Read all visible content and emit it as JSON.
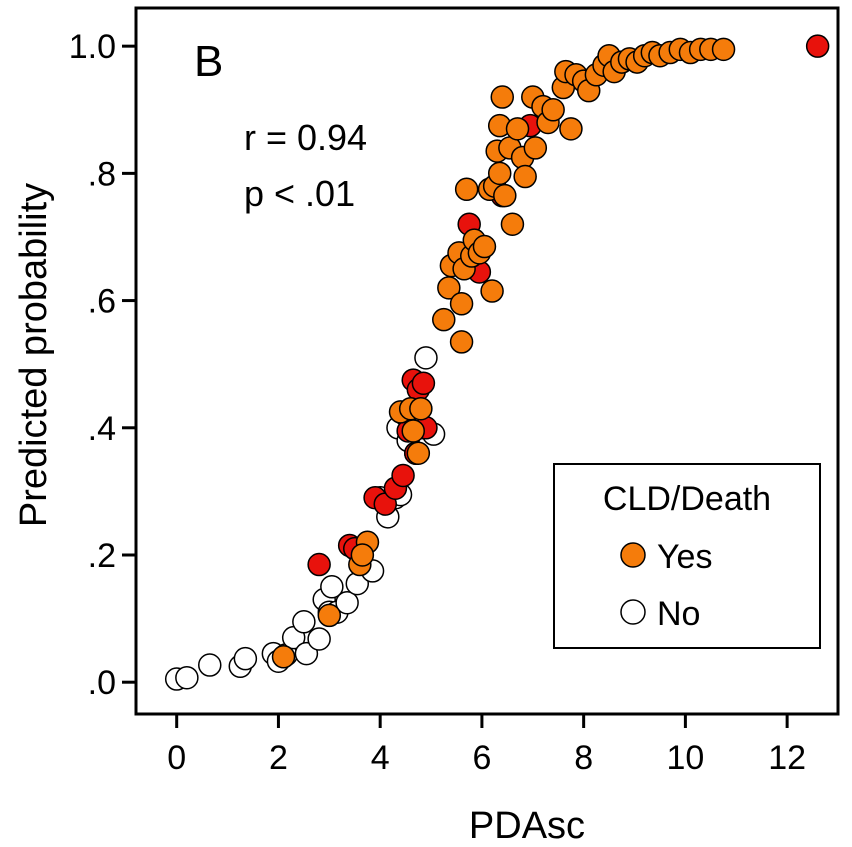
{
  "chart_data": {
    "type": "scatter",
    "panel_label": "B",
    "xlabel": "PDAsc",
    "ylabel": "Predicted probability",
    "xlim": [
      -0.8,
      13.0
    ],
    "ylim": [
      -0.05,
      1.06
    ],
    "x_ticks": [
      0,
      2,
      4,
      6,
      8,
      10,
      12
    ],
    "x_tick_labels": [
      "0",
      "2",
      "4",
      "6",
      "8",
      "10",
      "12"
    ],
    "y_ticks": [
      0,
      0.2,
      0.4,
      0.6,
      0.8,
      1.0
    ],
    "y_tick_labels": [
      ".0",
      ".2",
      ".4",
      ".6",
      ".8",
      "1.0"
    ],
    "grid": false,
    "annotations": {
      "r_text": "r = 0.94",
      "p_text": "p < .01"
    },
    "legend": {
      "title": "CLD/Death",
      "placement": "bottom-right",
      "entries": [
        {
          "label": "Yes",
          "color": "#f57c0b"
        },
        {
          "label": "No",
          "color": "#ffffff"
        }
      ]
    },
    "colors": {
      "yes": "#f57c0b",
      "red": "#e8120c",
      "no": "#ffffff"
    },
    "series": [
      {
        "group": "no",
        "points": [
          [
            0.0,
            0.005
          ],
          [
            0.2,
            0.007
          ],
          [
            0.65,
            0.027
          ],
          [
            1.25,
            0.025
          ],
          [
            1.35,
            0.037
          ],
          [
            1.9,
            0.045
          ],
          [
            2.0,
            0.033
          ],
          [
            2.15,
            0.043
          ],
          [
            2.3,
            0.07
          ],
          [
            2.5,
            0.095
          ],
          [
            2.55,
            0.045
          ],
          [
            2.8,
            0.068
          ],
          [
            2.9,
            0.13
          ],
          [
            3.0,
            0.11
          ],
          [
            3.05,
            0.15
          ],
          [
            3.15,
            0.11
          ],
          [
            3.35,
            0.125
          ],
          [
            3.55,
            0.155
          ],
          [
            3.85,
            0.175
          ],
          [
            4.0,
            0.29
          ],
          [
            4.15,
            0.26
          ],
          [
            4.3,
            0.29
          ],
          [
            4.4,
            0.295
          ],
          [
            4.35,
            0.4
          ],
          [
            4.55,
            0.38
          ],
          [
            4.7,
            0.36
          ],
          [
            4.8,
            0.4
          ],
          [
            4.9,
            0.51
          ],
          [
            5.05,
            0.39
          ]
        ]
      },
      {
        "group": "red",
        "points": [
          [
            2.8,
            0.185
          ],
          [
            3.4,
            0.215
          ],
          [
            3.5,
            0.21
          ],
          [
            3.9,
            0.29
          ],
          [
            4.1,
            0.28
          ],
          [
            4.3,
            0.305
          ],
          [
            4.45,
            0.325
          ],
          [
            4.5,
            0.42
          ],
          [
            4.55,
            0.395
          ],
          [
            4.65,
            0.475
          ],
          [
            4.75,
            0.46
          ],
          [
            4.85,
            0.47
          ],
          [
            4.9,
            0.4
          ],
          [
            4.7,
            0.36
          ],
          [
            5.75,
            0.72
          ],
          [
            5.95,
            0.645
          ],
          [
            6.4,
            0.765
          ],
          [
            6.95,
            0.875
          ],
          [
            12.6,
            1.0
          ]
        ]
      },
      {
        "group": "yes",
        "points": [
          [
            2.1,
            0.04
          ],
          [
            3.0,
            0.105
          ],
          [
            3.6,
            0.185
          ],
          [
            3.75,
            0.22
          ],
          [
            3.65,
            0.2
          ],
          [
            4.4,
            0.425
          ],
          [
            4.6,
            0.43
          ],
          [
            4.8,
            0.43
          ],
          [
            4.65,
            0.395
          ],
          [
            4.75,
            0.36
          ],
          [
            5.25,
            0.57
          ],
          [
            5.35,
            0.62
          ],
          [
            5.4,
            0.655
          ],
          [
            5.55,
            0.675
          ],
          [
            5.6,
            0.535
          ],
          [
            5.6,
            0.595
          ],
          [
            5.65,
            0.65
          ],
          [
            5.7,
            0.775
          ],
          [
            5.8,
            0.67
          ],
          [
            5.85,
            0.695
          ],
          [
            5.95,
            0.675
          ],
          [
            6.05,
            0.685
          ],
          [
            6.15,
            0.775
          ],
          [
            6.2,
            0.615
          ],
          [
            6.25,
            0.78
          ],
          [
            6.3,
            0.835
          ],
          [
            6.35,
            0.875
          ],
          [
            6.35,
            0.8
          ],
          [
            6.4,
            0.92
          ],
          [
            6.45,
            0.765
          ],
          [
            6.55,
            0.84
          ],
          [
            6.6,
            0.72
          ],
          [
            6.7,
            0.87
          ],
          [
            6.8,
            0.825
          ],
          [
            6.85,
            0.795
          ],
          [
            7.0,
            0.92
          ],
          [
            7.05,
            0.84
          ],
          [
            7.2,
            0.905
          ],
          [
            7.3,
            0.88
          ],
          [
            7.4,
            0.9
          ],
          [
            7.6,
            0.935
          ],
          [
            7.65,
            0.96
          ],
          [
            7.75,
            0.87
          ],
          [
            7.85,
            0.955
          ],
          [
            8.0,
            0.945
          ],
          [
            8.1,
            0.93
          ],
          [
            8.25,
            0.955
          ],
          [
            8.4,
            0.97
          ],
          [
            8.5,
            0.985
          ],
          [
            8.6,
            0.96
          ],
          [
            8.75,
            0.975
          ],
          [
            8.9,
            0.98
          ],
          [
            9.05,
            0.975
          ],
          [
            9.2,
            0.985
          ],
          [
            9.35,
            0.99
          ],
          [
            9.5,
            0.985
          ],
          [
            9.7,
            0.99
          ],
          [
            9.9,
            0.995
          ],
          [
            10.1,
            0.99
          ],
          [
            10.3,
            0.995
          ],
          [
            10.5,
            0.995
          ],
          [
            10.75,
            0.995
          ]
        ]
      }
    ]
  }
}
